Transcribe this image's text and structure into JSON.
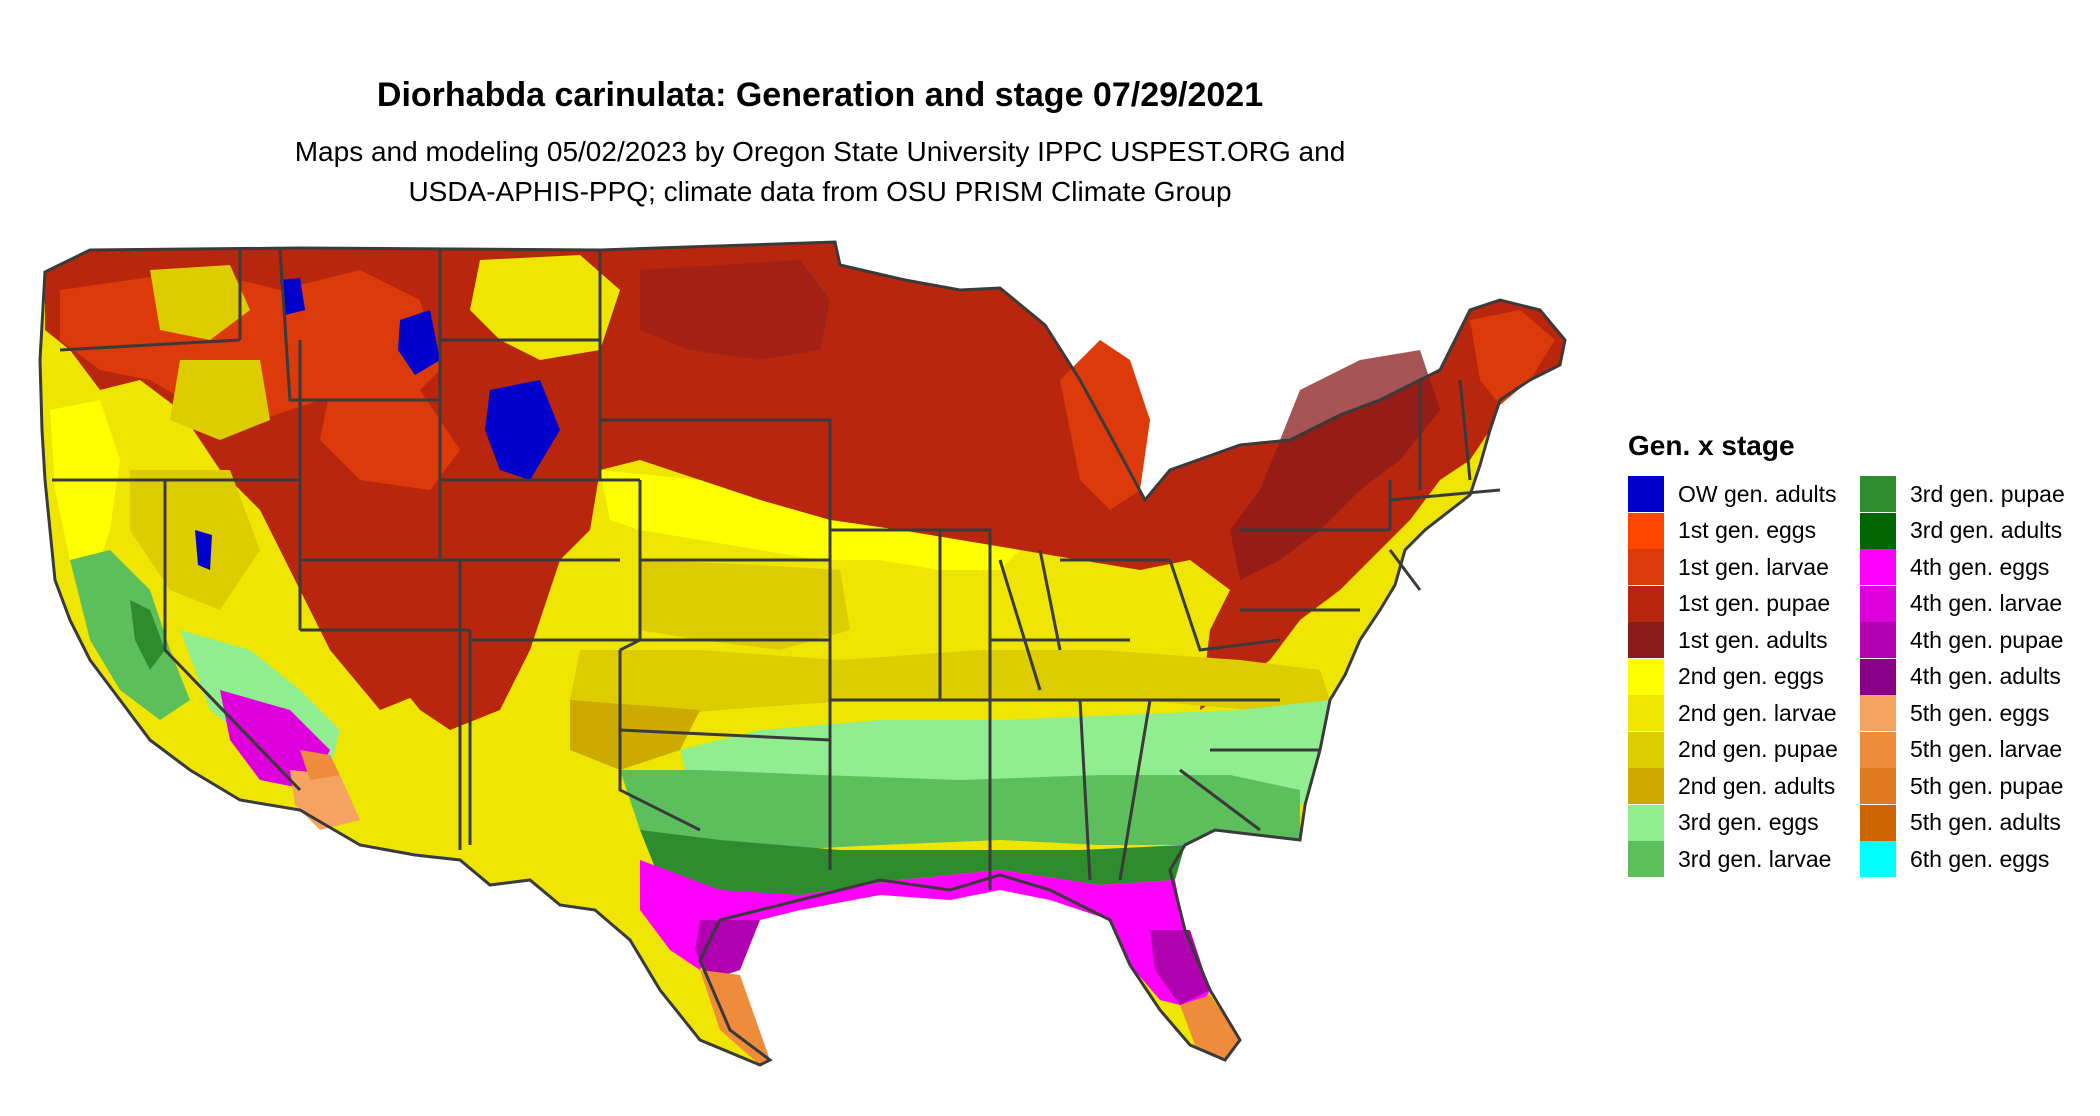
{
  "title": "Diorhabda carinulata: Generation and stage 07/29/2021",
  "subtitle_lines": [
    "Maps and modeling 05/02/2023 by Oregon State University IPPC USPEST.ORG and",
    "USDA-APHIS-PPQ; climate data from OSU PRISM Climate Group"
  ],
  "legend": {
    "title": "Gen. x stage",
    "items": [
      {
        "label": "OW gen. adults",
        "color": "#0000cd"
      },
      {
        "label": "1st gen. eggs",
        "color": "#ff4500"
      },
      {
        "label": "1st gen. larvae",
        "color": "#dc3a0a"
      },
      {
        "label": "1st gen. pupae",
        "color": "#b8260e"
      },
      {
        "label": "1st gen. adults",
        "color": "#8b1a1a"
      },
      {
        "label": "2nd gen. eggs",
        "color": "#ffff00"
      },
      {
        "label": "2nd gen. larvae",
        "color": "#eee600"
      },
      {
        "label": "2nd gen. pupae",
        "color": "#ddcc00"
      },
      {
        "label": "2nd gen. adults",
        "color": "#ccaa00"
      },
      {
        "label": "3rd gen. eggs",
        "color": "#90ee90"
      },
      {
        "label": "3rd gen. larvae",
        "color": "#5cbf5c"
      },
      {
        "label": "3rd gen. pupae",
        "color": "#2e8b2e"
      },
      {
        "label": "3rd gen. adults",
        "color": "#006400"
      },
      {
        "label": "4th gen. eggs",
        "color": "#ff00ff"
      },
      {
        "label": "4th gen. larvae",
        "color": "#dd00dd"
      },
      {
        "label": "4th gen. pupae",
        "color": "#b000b0"
      },
      {
        "label": "4th gen. adults",
        "color": "#8b008b"
      },
      {
        "label": "5th gen. eggs",
        "color": "#f4a460"
      },
      {
        "label": "5th gen. larvae",
        "color": "#ee8c3c"
      },
      {
        "label": "5th gen. pupae",
        "color": "#e07a20"
      },
      {
        "label": "5th gen. adults",
        "color": "#cd6600"
      },
      {
        "label": "6th gen. eggs",
        "color": "#00ffff"
      }
    ]
  }
}
